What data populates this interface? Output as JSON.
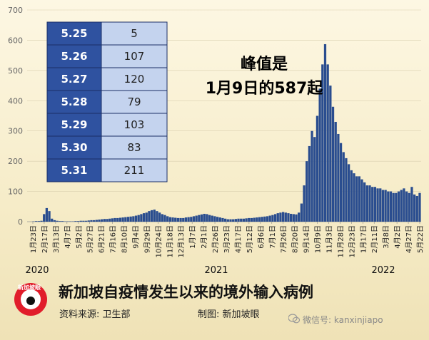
{
  "chart_data": {
    "type": "bar",
    "ylim": [
      0,
      700
    ],
    "yticks": [
      0,
      100,
      200,
      300,
      400,
      500,
      600,
      700
    ],
    "x_tick_labels": [
      "1月23日",
      "2月17日",
      "3月13日",
      "4月7日",
      "5月2日",
      "5月27日",
      "6月21日",
      "7月16日",
      "8月10日",
      "9月4日",
      "9月29日",
      "10月24日",
      "11月18日",
      "12月13日",
      "1月7日",
      "2月1日",
      "2月26日",
      "3月23日",
      "4月17日",
      "5月12日",
      "6月6日",
      "7月1日",
      "7月26日",
      "8月20日",
      "9月14日",
      "10月9日",
      "11月3日",
      "11月28日",
      "12月23日",
      "1月17日",
      "2月11日",
      "3月8日",
      "4月2日",
      "4月27日",
      "5月22日"
    ],
    "year_labels": [
      "2020",
      "2021",
      "2022"
    ],
    "peak": {
      "label": "1月9日",
      "value": 587
    },
    "weekly_approx_values": [
      0,
      0,
      1,
      2,
      2,
      3,
      25,
      45,
      35,
      10,
      5,
      3,
      2,
      2,
      1,
      1,
      1,
      1,
      2,
      2,
      3,
      3,
      3,
      4,
      5,
      5,
      6,
      7,
      8,
      9,
      9,
      10,
      11,
      12,
      12,
      13,
      14,
      15,
      16,
      17,
      18,
      20,
      22,
      25,
      28,
      30,
      35,
      38,
      40,
      35,
      30,
      25,
      22,
      18,
      15,
      14,
      13,
      12,
      12,
      12,
      14,
      15,
      16,
      18,
      20,
      22,
      24,
      26,
      25,
      22,
      20,
      18,
      16,
      14,
      12,
      10,
      8,
      8,
      8,
      9,
      10,
      10,
      10,
      11,
      12,
      12,
      13,
      14,
      15,
      16,
      17,
      18,
      20,
      22,
      25,
      28,
      30,
      32,
      30,
      28,
      26,
      25,
      24,
      30,
      60,
      120,
      200,
      250,
      300,
      280,
      350,
      440,
      520,
      587,
      520,
      450,
      380,
      330,
      290,
      260,
      230,
      210,
      190,
      170,
      160,
      150,
      150,
      140,
      130,
      120,
      120,
      115,
      115,
      110,
      110,
      105,
      105,
      100,
      100,
      95,
      95,
      100,
      105,
      110,
      100,
      95,
      115,
      90,
      85,
      95
    ]
  },
  "table": {
    "rows": [
      {
        "date": "5.25",
        "value": "5"
      },
      {
        "date": "5.26",
        "value": "107"
      },
      {
        "date": "5.27",
        "value": "120"
      },
      {
        "date": "5.28",
        "value": "79"
      },
      {
        "date": "5.29",
        "value": "103"
      },
      {
        "date": "5.30",
        "value": "83"
      },
      {
        "date": "5.31",
        "value": "211"
      }
    ]
  },
  "annotation": {
    "line1": "峰值是",
    "line2": "1月9日的587起"
  },
  "footer": {
    "title": "新加坡自疫情发生以来的境外输入病例",
    "source": "资料来源:  卫生部",
    "credit": "制图:  新加坡眼",
    "logo_text": "新加坡眼",
    "wechat": "微信号: kanxinjiapo"
  },
  "colors": {
    "bar": "#2a4d8f",
    "table_key_bg": "#2f52a0",
    "table_val_bg": "#c4d3ee",
    "logo": "#e11d2b"
  }
}
